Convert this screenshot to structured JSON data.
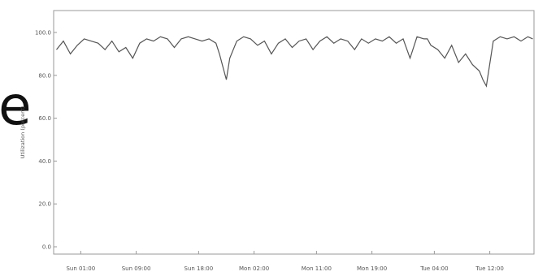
{
  "stray_glyph": "e",
  "chart_data": {
    "type": "line",
    "title": "",
    "xlabel": "",
    "ylabel": "Utilization (percent)",
    "ylim": [
      0,
      100
    ],
    "yticks": [
      "0.0",
      "20.0",
      "40.0",
      "60.0",
      "80.0",
      "100.0"
    ],
    "xticks": [
      {
        "label": "Sun 01:00",
        "x": 1
      },
      {
        "label": "Sun 09:00",
        "x": 9
      },
      {
        "label": "Sun 18:00",
        "x": 18
      },
      {
        "label": "Mon 02:00",
        "x": 26
      },
      {
        "label": "Mon 11:00",
        "x": 35
      },
      {
        "label": "Mon 19:00",
        "x": 43
      },
      {
        "label": "Tue 04:00",
        "x": 52
      },
      {
        "label": "Tue 12:00",
        "x": 60
      }
    ],
    "xlim": [
      -2.5,
      66.2
    ],
    "grid": false,
    "color": "#555555",
    "series": [
      {
        "x": [
          -2.5,
          -1.5,
          -0.5,
          0.5,
          1.5,
          2.5,
          3.5,
          4.5,
          5.5,
          6.5,
          7.5,
          8.5,
          9.5,
          10.5,
          11.5,
          12.5,
          13.5,
          14.5,
          15.5,
          16.5,
          17.5,
          18.5,
          19.5,
          20.5,
          21.0,
          21.5,
          22.0,
          22.5,
          23.5,
          24.5,
          25.5,
          26.5,
          27.5,
          28.5,
          29.5,
          30.5,
          31.5,
          32.5,
          33.5,
          34.5,
          35.5,
          36.5,
          37.5,
          38.5,
          39.5,
          40.5,
          41.5,
          42.5,
          43.5,
          44.5,
          45.5,
          46.5,
          47.5,
          48.5,
          49.5,
          50.5,
          51.0,
          51.5,
          52.5,
          53.5,
          54.5,
          55.5,
          56.5,
          57.5,
          58.5,
          59.0,
          59.5,
          60.5,
          61.5,
          62.5,
          63.5,
          64.5,
          65.5,
          66.2
        ],
        "y": [
          92,
          96,
          90,
          94,
          97,
          96,
          95,
          92,
          96,
          91,
          93,
          88,
          95,
          97,
          96,
          98,
          97,
          93,
          97,
          98,
          97,
          96,
          97,
          95,
          90,
          84,
          78,
          88,
          96,
          98,
          97,
          94,
          96,
          90,
          95,
          97,
          93,
          96,
          97,
          92,
          96,
          98,
          95,
          97,
          96,
          92,
          97,
          95,
          97,
          96,
          98,
          95,
          97,
          88,
          98,
          97,
          97,
          94,
          92,
          88,
          94,
          86,
          90,
          85,
          82,
          78,
          75,
          96,
          98,
          97,
          98,
          96,
          98,
          97
        ]
      }
    ]
  }
}
